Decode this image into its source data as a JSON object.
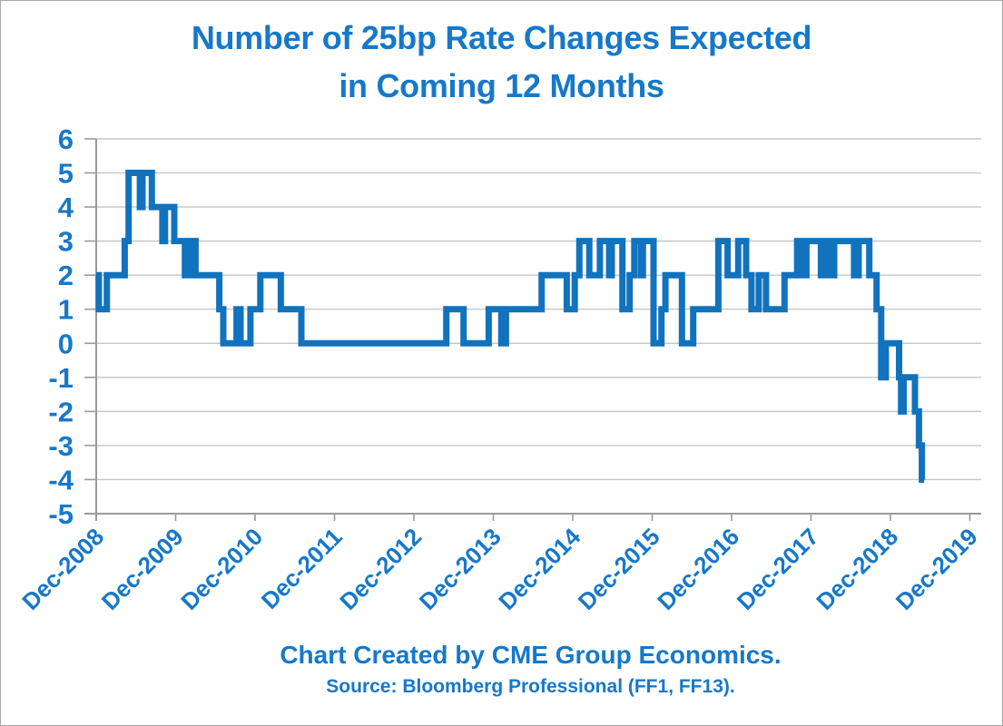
{
  "title": {
    "line1": "Number of 25bp Rate Changes Expected",
    "line2": "in Coming 12 Months"
  },
  "footer": {
    "credit": "Chart Created by CME Group Economics.",
    "source": "Source: Bloomberg Professional (FF1, FF13)."
  },
  "colors": {
    "text_blue": "#1678CA",
    "line": "#1172BE",
    "gridline": "#C6C6C6",
    "axis": "#9A9A9A",
    "border": "#A8A8A8",
    "background": "#FFFFFF"
  },
  "chart_data": {
    "type": "line",
    "step": true,
    "title": "Number of 25bp Rate Changes Expected in Coming 12 Months",
    "xlabel": "",
    "ylabel": "",
    "grid": "horizontal",
    "legend": "none",
    "x_unit": "months since Dec-2008",
    "x_tick_labels": [
      "Dec-2008",
      "Dec-2009",
      "Dec-2010",
      "Dec-2011",
      "Dec-2012",
      "Dec-2013",
      "Dec-2014",
      "Dec-2015",
      "Dec-2016",
      "Dec-2017",
      "Dec-2018",
      "Dec-2019"
    ],
    "x_tick_months": [
      0,
      12,
      24,
      36,
      48,
      60,
      72,
      84,
      96,
      108,
      120,
      132
    ],
    "xlim": [
      0,
      134
    ],
    "ylim": [
      -5,
      6
    ],
    "y_ticks": [
      6,
      5,
      4,
      3,
      2,
      1,
      0,
      -1,
      -2,
      -3,
      -4,
      -5
    ],
    "series": [
      {
        "name": "expected_25bp_rate_changes_next_12_months",
        "points": [
          [
            0,
            2
          ],
          [
            0.4,
            1
          ],
          [
            1.6,
            2
          ],
          [
            4.3,
            3
          ],
          [
            4.9,
            5
          ],
          [
            6.6,
            4
          ],
          [
            7.0,
            5
          ],
          [
            8.4,
            4
          ],
          [
            10.0,
            3
          ],
          [
            10.4,
            4
          ],
          [
            11.8,
            3
          ],
          [
            13.4,
            2
          ],
          [
            13.8,
            3
          ],
          [
            14.2,
            2
          ],
          [
            14.6,
            3
          ],
          [
            15.0,
            2
          ],
          [
            18.6,
            1
          ],
          [
            19.2,
            0
          ],
          [
            21.2,
            1
          ],
          [
            21.8,
            0
          ],
          [
            23.3,
            1
          ],
          [
            24.8,
            2
          ],
          [
            27.9,
            1
          ],
          [
            31.0,
            0
          ],
          [
            52.9,
            1
          ],
          [
            55.5,
            0
          ],
          [
            59.3,
            1
          ],
          [
            61.2,
            0
          ],
          [
            61.9,
            1
          ],
          [
            67.3,
            2
          ],
          [
            71.1,
            1
          ],
          [
            72.3,
            2
          ],
          [
            73.0,
            3
          ],
          [
            74.5,
            2
          ],
          [
            76.1,
            3
          ],
          [
            77.5,
            2
          ],
          [
            77.9,
            3
          ],
          [
            79.5,
            1
          ],
          [
            80.6,
            2
          ],
          [
            81.3,
            3
          ],
          [
            82.3,
            2
          ],
          [
            82.6,
            3
          ],
          [
            84.2,
            0
          ],
          [
            85.4,
            1
          ],
          [
            86.0,
            2
          ],
          [
            88.5,
            0
          ],
          [
            90.2,
            1
          ],
          [
            94.0,
            3
          ],
          [
            95.4,
            2
          ],
          [
            97.0,
            3
          ],
          [
            98.2,
            2
          ],
          [
            99.0,
            1
          ],
          [
            100.1,
            2
          ],
          [
            101.2,
            1
          ],
          [
            104.0,
            2
          ],
          [
            105.9,
            3
          ],
          [
            106.7,
            2
          ],
          [
            107.3,
            3
          ],
          [
            109.5,
            2
          ],
          [
            110.1,
            3
          ],
          [
            110.8,
            2
          ],
          [
            111.5,
            3
          ],
          [
            114.5,
            2
          ],
          [
            115.2,
            3
          ],
          [
            116.8,
            2
          ],
          [
            117.9,
            1
          ],
          [
            118.6,
            -1
          ],
          [
            119.3,
            0
          ],
          [
            121.3,
            -1
          ],
          [
            121.6,
            -2
          ],
          [
            122.0,
            -1
          ],
          [
            123.7,
            -2
          ],
          [
            124.3,
            -3
          ],
          [
            124.75,
            -4
          ],
          [
            125.1,
            -4
          ]
        ]
      }
    ]
  }
}
